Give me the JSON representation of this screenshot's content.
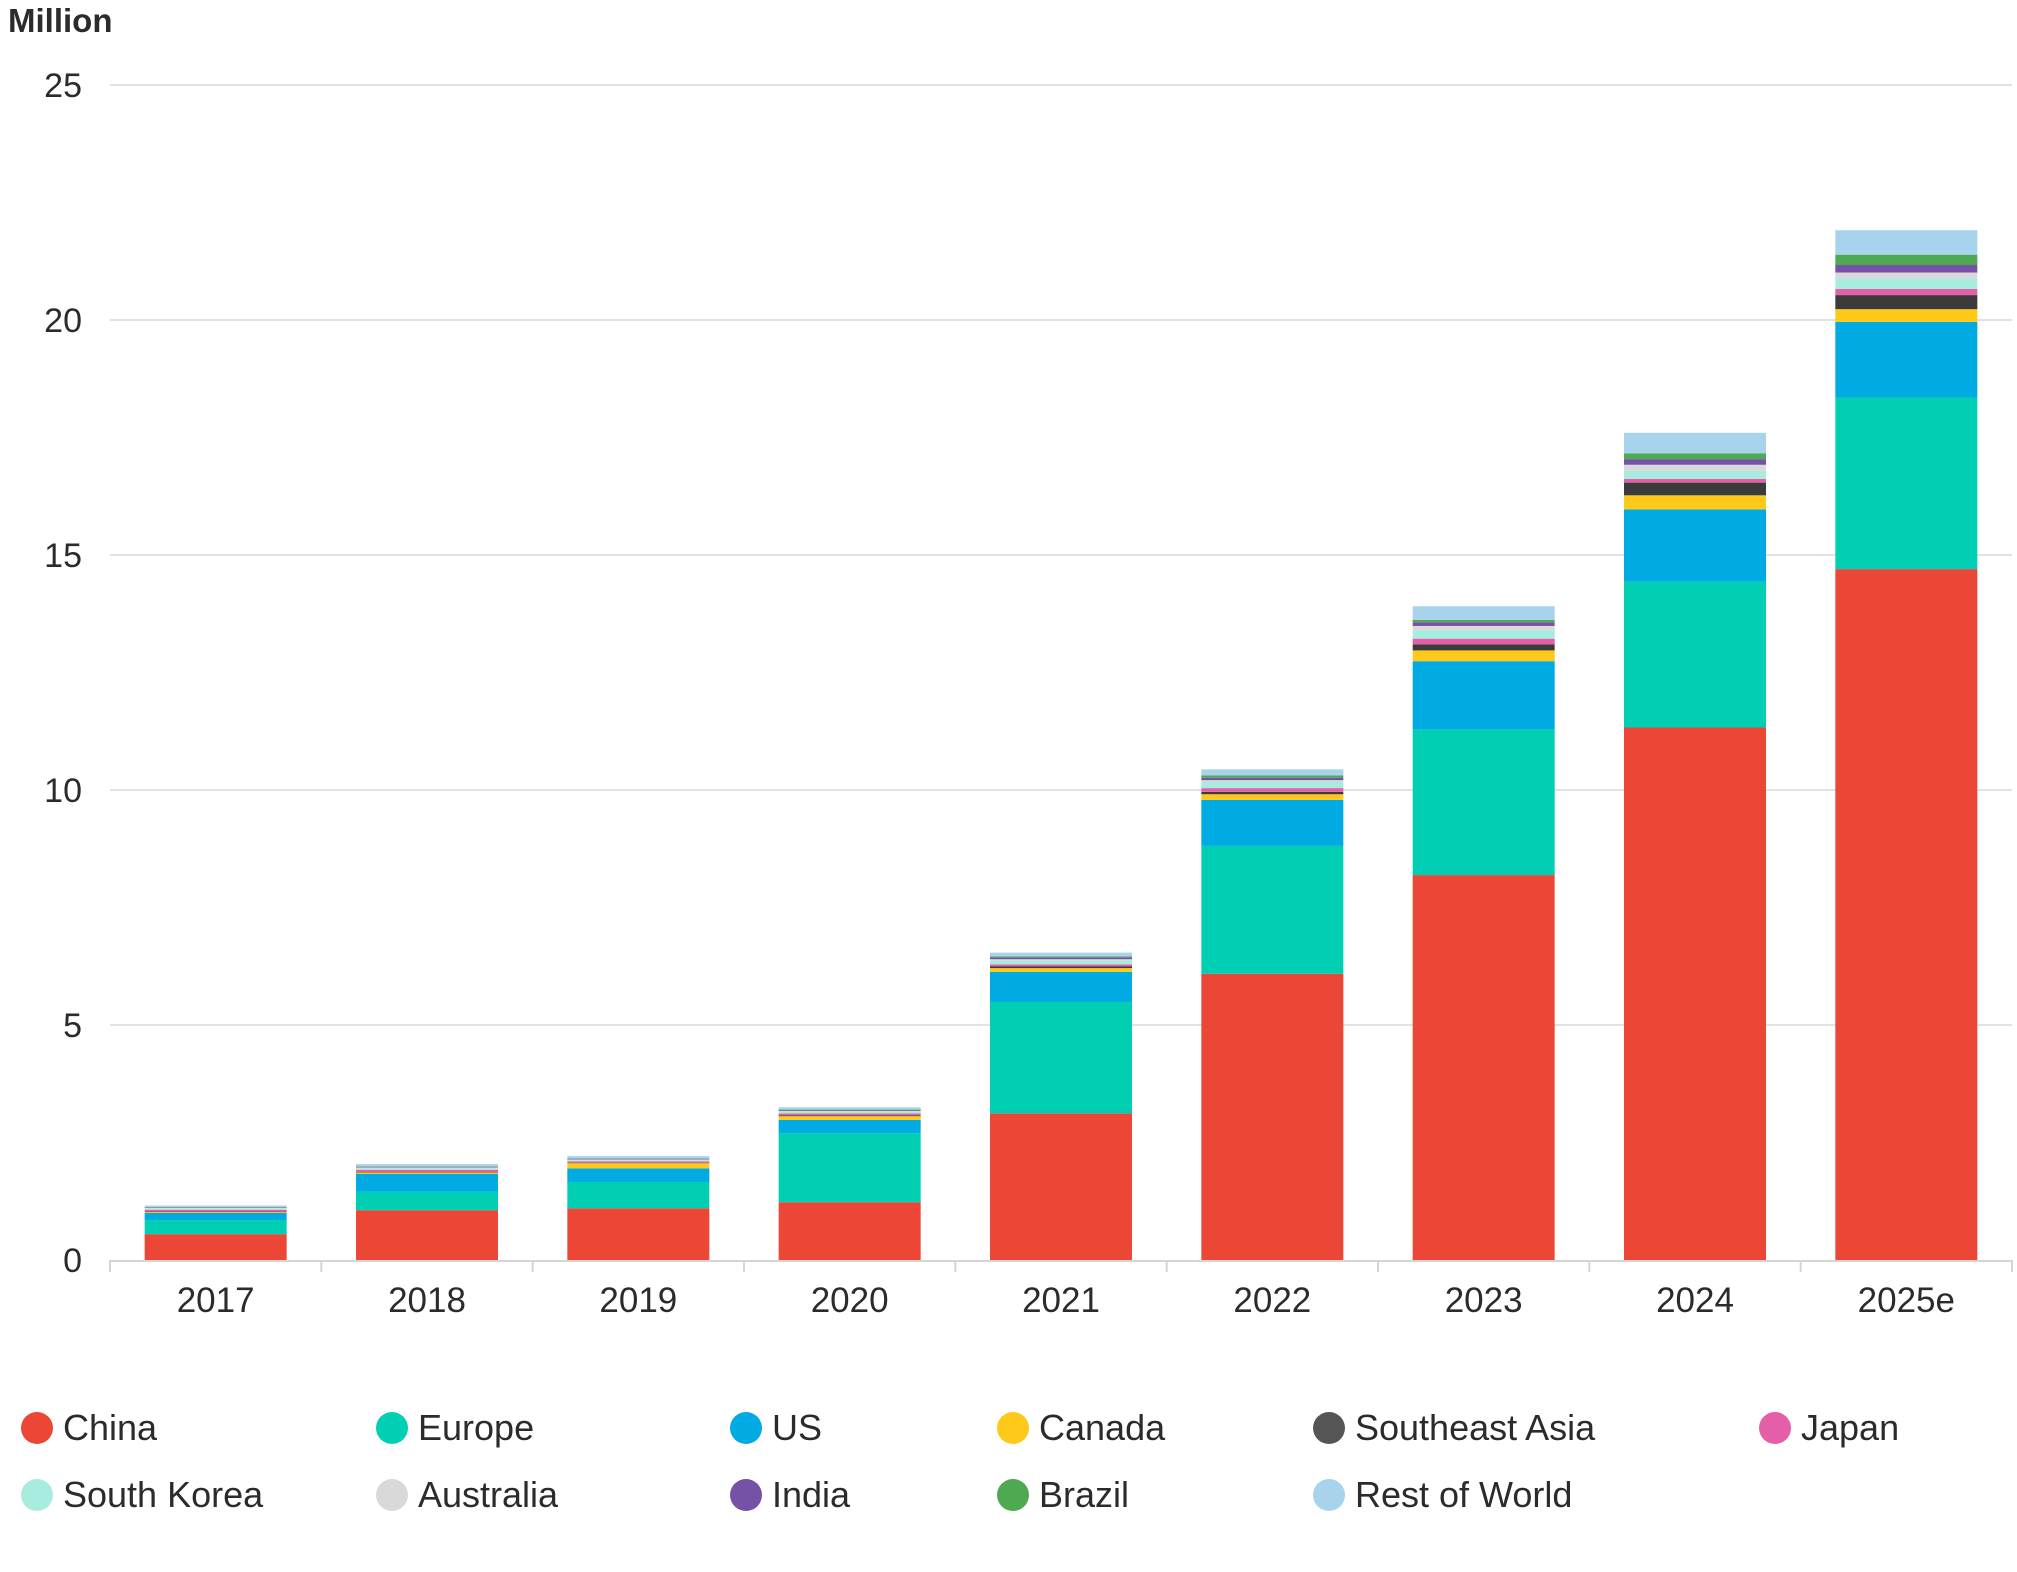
{
  "chart_data": {
    "type": "bar",
    "stacked": true,
    "ylabel": "Million",
    "ylim": [
      0,
      25
    ],
    "yticks": [
      0,
      5,
      10,
      15,
      20,
      25
    ],
    "grid": true,
    "legend_position": "bottom",
    "categories": [
      "2017",
      "2018",
      "2019",
      "2020",
      "2021",
      "2022",
      "2023",
      "2024",
      "2025e"
    ],
    "series": [
      {
        "name": "China",
        "color": "#ec4637",
        "values": [
          0.55,
          1.06,
          1.1,
          1.23,
          3.12,
          6.09,
          8.19,
          11.33,
          14.7
        ]
      },
      {
        "name": "Europe",
        "color": "#00cfb4",
        "values": [
          0.3,
          0.39,
          0.56,
          1.47,
          2.37,
          2.72,
          3.1,
          3.1,
          3.65
        ]
      },
      {
        "name": "US",
        "color": "#00abe3",
        "values": [
          0.15,
          0.38,
          0.29,
          0.28,
          0.64,
          0.98,
          1.45,
          1.54,
          1.61
        ]
      },
      {
        "name": "Canada",
        "color": "#ffc91a",
        "values": [
          0.02,
          0.03,
          0.11,
          0.08,
          0.08,
          0.12,
          0.23,
          0.3,
          0.27
        ]
      },
      {
        "name": "Southeast Asia",
        "color": "#3b3b3b",
        "values": [
          0.01,
          0.01,
          0.01,
          0.02,
          0.04,
          0.05,
          0.13,
          0.27,
          0.3
        ]
      },
      {
        "name": "Japan",
        "color": "#e45fa8",
        "values": [
          0.04,
          0.05,
          0.03,
          0.04,
          0.04,
          0.08,
          0.12,
          0.08,
          0.13
        ]
      },
      {
        "name": "South Korea",
        "color": "#a8ece0",
        "values": [
          0.02,
          0.03,
          0.02,
          0.03,
          0.08,
          0.14,
          0.18,
          0.17,
          0.23
        ]
      },
      {
        "name": "Australia",
        "color": "#d9d9d9",
        "values": [
          0.02,
          0.02,
          0.02,
          0.02,
          0.03,
          0.03,
          0.09,
          0.13,
          0.12
        ]
      },
      {
        "name": "India",
        "color": "#7652a6",
        "values": [
          0.01,
          0.01,
          0.01,
          0.01,
          0.04,
          0.05,
          0.08,
          0.12,
          0.16
        ]
      },
      {
        "name": "Brazil",
        "color": "#4daa50",
        "values": [
          0.01,
          0.01,
          0.01,
          0.02,
          0.02,
          0.05,
          0.05,
          0.12,
          0.22
        ]
      },
      {
        "name": "Rest of World",
        "color": "#a7d3ec",
        "values": [
          0.03,
          0.05,
          0.05,
          0.05,
          0.08,
          0.13,
          0.29,
          0.44,
          0.52
        ]
      }
    ]
  }
}
